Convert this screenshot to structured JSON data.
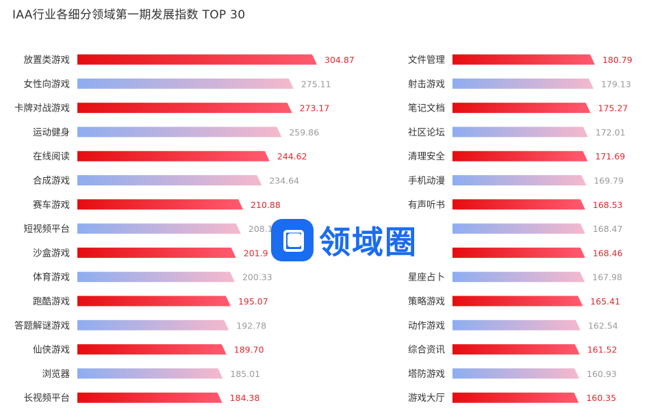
{
  "title": "IAA行业各细分领域第一期发展指数 TOP 30",
  "watermark": "领域圈",
  "colors": {
    "red_start": "#e60d10",
    "red_end": "#ff5a70",
    "blue_start": "#8eaef0",
    "pink_end": "#f5b8cc",
    "red_value": "#e0282e",
    "gray_value": "#9a9a9a",
    "watermark_blue": "#1a6cf0"
  },
  "chart_data": [
    {
      "type": "bar",
      "orientation": "horizontal",
      "categories": [
        "放置类游戏",
        "女性向游戏",
        "卡牌对战游戏",
        "运动健身",
        "在线阅读",
        "合成游戏",
        "赛车游戏",
        "短视频平台",
        "沙盒游戏",
        "体育游戏",
        "跑酷游戏",
        "答题解谜游戏",
        "仙侠游戏",
        "浏览器",
        "长视频平台"
      ],
      "values": [
        304.87,
        275.11,
        273.17,
        259.86,
        244.62,
        234.64,
        210.88,
        208.1,
        201.9,
        200.33,
        195.07,
        192.78,
        189.7,
        185.01,
        184.38
      ],
      "value_labels": [
        "304.87",
        "275.11",
        "273.17",
        "259.86",
        "244.62",
        "234.64",
        "210.88",
        "208.1",
        "201.9",
        "200.33",
        "195.07",
        "192.78",
        "189.70",
        "185.01",
        "184.38"
      ],
      "bar_colors": [
        "red",
        "blue",
        "red",
        "blue",
        "red",
        "blue",
        "red",
        "blue",
        "red",
        "blue",
        "red",
        "blue",
        "red",
        "blue",
        "red"
      ],
      "grid": false,
      "legend": "none"
    },
    {
      "type": "bar",
      "orientation": "horizontal",
      "categories": [
        "文件管理",
        "射击游戏",
        "笔记文档",
        "社区论坛",
        "清理安全",
        "手机动漫",
        "有声听书",
        "",
        "",
        "星座占卜",
        "策略游戏",
        "动作游戏",
        "综合资讯",
        "塔防游戏",
        "游戏大厅"
      ],
      "values": [
        180.79,
        179.13,
        175.27,
        172.01,
        171.69,
        169.79,
        168.53,
        168.47,
        168.46,
        167.98,
        165.41,
        162.54,
        161.52,
        160.93,
        160.35
      ],
      "value_labels": [
        "180.79",
        "179.13",
        "175.27",
        "172.01",
        "171.69",
        "169.79",
        "168.53",
        "168.47",
        "168.46",
        "167.98",
        "165.41",
        "162.54",
        "161.52",
        "160.93",
        "160.35"
      ],
      "bar_colors": [
        "red",
        "blue",
        "red",
        "blue",
        "red",
        "blue",
        "red",
        "blue",
        "red",
        "blue",
        "red",
        "blue",
        "red",
        "blue",
        "red"
      ],
      "grid": false,
      "legend": "none"
    }
  ]
}
